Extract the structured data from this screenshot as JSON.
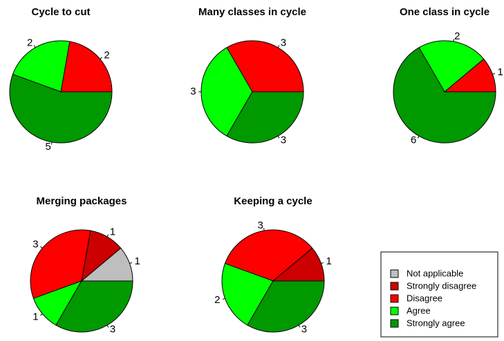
{
  "chart_data": [
    {
      "type": "pie",
      "title": "Cycle to cut",
      "values": [
        2,
        2,
        5
      ],
      "colors": [
        "#ff0000",
        "#00ff00",
        "#009900"
      ]
    },
    {
      "type": "pie",
      "title": "Many classes in cycle",
      "values": [
        3,
        3,
        3
      ],
      "colors": [
        "#ff0000",
        "#00ff00",
        "#009900"
      ]
    },
    {
      "type": "pie",
      "title": "One class in cycle",
      "values": [
        1,
        2,
        6
      ],
      "colors": [
        "#ff0000",
        "#00ff00",
        "#009900"
      ]
    },
    {
      "type": "pie",
      "title": "Merging packages",
      "values": [
        1,
        1,
        3,
        1,
        3
      ],
      "colors": [
        "#bebebe",
        "#cc0000",
        "#ff0000",
        "#00ff00",
        "#009900"
      ]
    },
    {
      "type": "pie",
      "title": "Keeping a cycle",
      "values": [
        1,
        3,
        2,
        3
      ],
      "colors": [
        "#cc0000",
        "#ff0000",
        "#00ff00",
        "#009900"
      ]
    }
  ],
  "legend": {
    "labels": [
      "Not applicable",
      "Strongly disagree",
      "Disagree",
      "Agree",
      "Strongly agree"
    ],
    "colors": [
      "#bebebe",
      "#cc0000",
      "#ff0000",
      "#00ff00",
      "#009900"
    ]
  }
}
